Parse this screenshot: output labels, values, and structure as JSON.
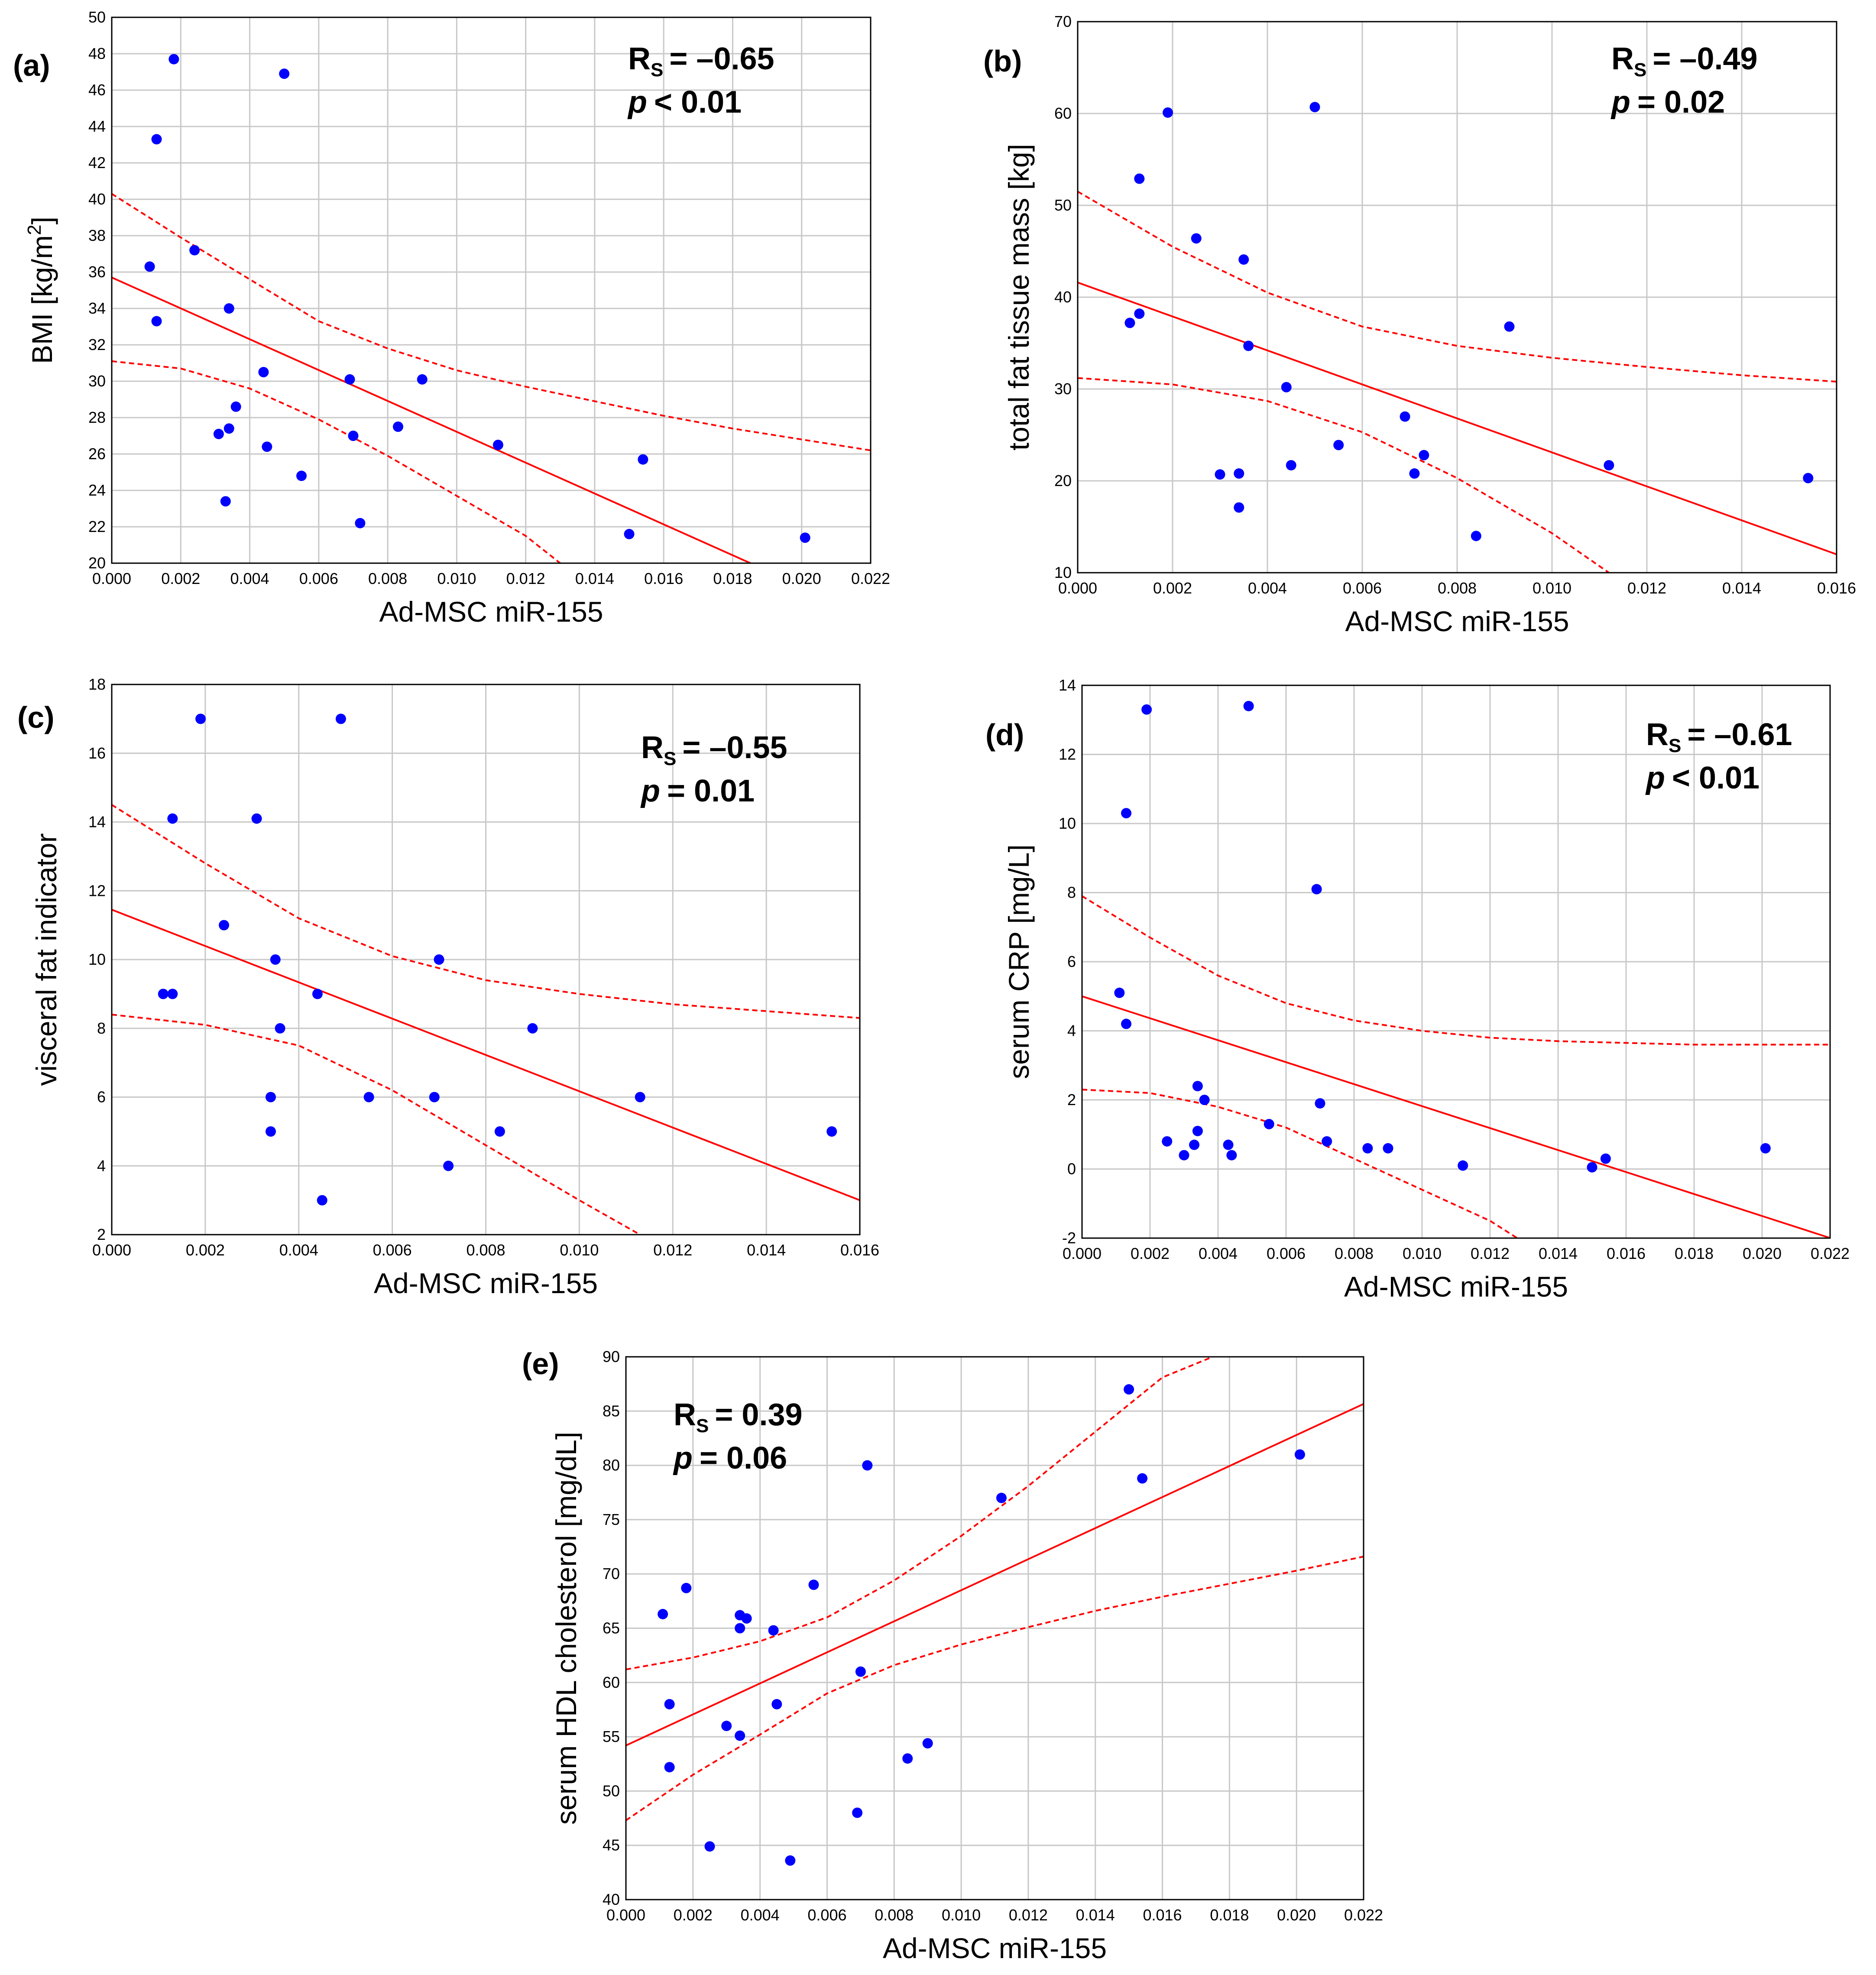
{
  "colors": {
    "points": "#0000ff",
    "fit": "#ff0000",
    "grid": "#c8c8c8"
  },
  "chart_data": [
    {
      "type": "scatter",
      "panel": "(a)",
      "xlabel": "Ad-MSC miR-155",
      "ylabel": "BMI [kg/m",
      "ylabel_sup": "2",
      "ylabel_end": "]",
      "stat": {
        "r": "= –0.65",
        "p": "< 0.01",
        "position": "top-right"
      },
      "xlim": [
        0,
        0.022
      ],
      "ylim": [
        20,
        50
      ],
      "xticks": [
        "0.000",
        "0.002",
        "0.004",
        "0.006",
        "0.008",
        "0.010",
        "0.012",
        "0.014",
        "0.016",
        "0.018",
        "0.020",
        "0.022"
      ],
      "yticks": [
        "20",
        "22",
        "24",
        "26",
        "28",
        "30",
        "32",
        "34",
        "36",
        "38",
        "40",
        "42",
        "44",
        "46",
        "48",
        "50"
      ],
      "fit": {
        "intercept": 35.7,
        "slope": -848
      },
      "ci_upper": [
        [
          0,
          40.3
        ],
        [
          0.002,
          37.9
        ],
        [
          0.004,
          35.6
        ],
        [
          0.006,
          33.3
        ],
        [
          0.008,
          31.8
        ],
        [
          0.01,
          30.6
        ],
        [
          0.012,
          29.7
        ],
        [
          0.014,
          28.9
        ],
        [
          0.016,
          28.1
        ],
        [
          0.018,
          27.4
        ],
        [
          0.02,
          26.8
        ],
        [
          0.022,
          26.2
        ]
      ],
      "ci_lower": [
        [
          0,
          31.1
        ],
        [
          0.002,
          30.7
        ],
        [
          0.004,
          29.6
        ],
        [
          0.006,
          27.9
        ],
        [
          0.008,
          25.9
        ],
        [
          0.01,
          23.7
        ],
        [
          0.012,
          21.5
        ],
        [
          0.013,
          20.0
        ]
      ],
      "points": [
        [
          0.0011,
          36.3
        ],
        [
          0.0013,
          43.3
        ],
        [
          0.0013,
          33.3
        ],
        [
          0.0018,
          47.7
        ],
        [
          0.0024,
          37.2
        ],
        [
          0.0031,
          27.1
        ],
        [
          0.0033,
          23.4
        ],
        [
          0.0034,
          27.4
        ],
        [
          0.0034,
          34
        ],
        [
          0.0036,
          28.6
        ],
        [
          0.0044,
          30.5
        ],
        [
          0.0045,
          26.4
        ],
        [
          0.005,
          46.9
        ],
        [
          0.0055,
          24.8
        ],
        [
          0.0069,
          30.1
        ],
        [
          0.007,
          27
        ],
        [
          0.0072,
          22.2
        ],
        [
          0.0083,
          27.5
        ],
        [
          0.009,
          30.1
        ],
        [
          0.0112,
          26.5
        ],
        [
          0.015,
          21.6
        ],
        [
          0.0154,
          25.7
        ],
        [
          0.0201,
          21.4
        ]
      ]
    },
    {
      "type": "scatter",
      "panel": "(b)",
      "xlabel": "Ad-MSC miR-155",
      "ylabel": "total fat tissue mass [kg]",
      "stat": {
        "r": "= –0.49",
        "p": "= 0.02",
        "position": "top-right"
      },
      "xlim": [
        0,
        0.016
      ],
      "ylim": [
        10,
        70
      ],
      "xticks": [
        "0.000",
        "0.002",
        "0.004",
        "0.006",
        "0.008",
        "0.010",
        "0.012",
        "0.014",
        "0.016"
      ],
      "yticks": [
        "10",
        "20",
        "30",
        "40",
        "50",
        "60",
        "70"
      ],
      "fit": {
        "intercept": 41.6,
        "slope": -1850
      },
      "ci_upper": [
        [
          0,
          51.5
        ],
        [
          0.002,
          45.5
        ],
        [
          0.004,
          40.5
        ],
        [
          0.006,
          36.8
        ],
        [
          0.008,
          34.7
        ],
        [
          0.01,
          33.4
        ],
        [
          0.012,
          32.4
        ],
        [
          0.014,
          31.5
        ],
        [
          0.016,
          30.8
        ]
      ],
      "ci_lower": [
        [
          0,
          31.2
        ],
        [
          0.002,
          30.5
        ],
        [
          0.004,
          28.7
        ],
        [
          0.006,
          25.3
        ],
        [
          0.008,
          20.3
        ],
        [
          0.01,
          14.3
        ],
        [
          0.0112,
          10.0
        ]
      ],
      "points": [
        [
          0.0011,
          37.2
        ],
        [
          0.0013,
          52.9
        ],
        [
          0.0013,
          38.2
        ],
        [
          0.0019,
          60.1
        ],
        [
          0.0025,
          46.4
        ],
        [
          0.003,
          20.7
        ],
        [
          0.0034,
          20.8
        ],
        [
          0.0034,
          17.1
        ],
        [
          0.0035,
          44.1
        ],
        [
          0.0036,
          34.7
        ],
        [
          0.0044,
          30.2
        ],
        [
          0.0045,
          21.7
        ],
        [
          0.005,
          60.7
        ],
        [
          0.0055,
          23.9
        ],
        [
          0.0069,
          27
        ],
        [
          0.0071,
          20.8
        ],
        [
          0.0073,
          22.8
        ],
        [
          0.0084,
          14
        ],
        [
          0.0091,
          36.8
        ],
        [
          0.0112,
          21.7
        ],
        [
          0.0154,
          20.3
        ]
      ]
    },
    {
      "type": "scatter",
      "panel": "(c)",
      "xlabel": "Ad-MSC miR-155",
      "ylabel": "visceral fat indicator",
      "stat": {
        "r": "= –0.55",
        "p": "= 0.01",
        "position": "top-right"
      },
      "xlim": [
        0,
        0.016
      ],
      "ylim": [
        2,
        18
      ],
      "xticks": [
        "0.000",
        "0.002",
        "0.004",
        "0.006",
        "0.008",
        "0.010",
        "0.012",
        "0.014",
        "0.016"
      ],
      "yticks": [
        "2",
        "4",
        "6",
        "8",
        "10",
        "12",
        "14",
        "16",
        "18"
      ],
      "fit": {
        "intercept": 11.45,
        "slope": -528
      },
      "ci_upper": [
        [
          0,
          14.5
        ],
        [
          0.002,
          12.8
        ],
        [
          0.004,
          11.2
        ],
        [
          0.006,
          10.1
        ],
        [
          0.008,
          9.4
        ],
        [
          0.01,
          9.0
        ],
        [
          0.012,
          8.7
        ],
        [
          0.014,
          8.5
        ],
        [
          0.016,
          8.3
        ]
      ],
      "ci_lower": [
        [
          0,
          8.4
        ],
        [
          0.002,
          8.1
        ],
        [
          0.004,
          7.5
        ],
        [
          0.006,
          6.2
        ],
        [
          0.008,
          4.6
        ],
        [
          0.01,
          3.0
        ],
        [
          0.0113,
          2.0
        ]
      ],
      "points": [
        [
          0.0011,
          9
        ],
        [
          0.0013,
          14.1
        ],
        [
          0.0013,
          9
        ],
        [
          0.0019,
          17
        ],
        [
          0.0024,
          11
        ],
        [
          0.0031,
          14.1
        ],
        [
          0.0034,
          6
        ],
        [
          0.0034,
          5
        ],
        [
          0.0035,
          10
        ],
        [
          0.0036,
          8
        ],
        [
          0.0044,
          9
        ],
        [
          0.0045,
          3
        ],
        [
          0.0049,
          17
        ],
        [
          0.0055,
          6
        ],
        [
          0.0069,
          6
        ],
        [
          0.007,
          10
        ],
        [
          0.0072,
          4
        ],
        [
          0.0083,
          5
        ],
        [
          0.009,
          8
        ],
        [
          0.0113,
          6
        ],
        [
          0.0154,
          5
        ]
      ]
    },
    {
      "type": "scatter",
      "panel": "(d)",
      "xlabel": "Ad-MSC miR-155",
      "ylabel": "serum CRP [mg/L]",
      "stat": {
        "r": "= –0.61",
        "p": "< 0.01",
        "position": "top-right"
      },
      "xlim": [
        0,
        0.022
      ],
      "ylim": [
        -2,
        14
      ],
      "xticks": [
        "0.000",
        "0.002",
        "0.004",
        "0.006",
        "0.008",
        "0.010",
        "0.012",
        "0.014",
        "0.016",
        "0.018",
        "0.020",
        "0.022"
      ],
      "yticks": [
        "-2",
        "0",
        "2",
        "4",
        "6",
        "8",
        "10",
        "12",
        "14"
      ],
      "fit": {
        "intercept": 5.0,
        "slope": -318
      },
      "ci_upper": [
        [
          0,
          7.9
        ],
        [
          0.002,
          6.7
        ],
        [
          0.004,
          5.6
        ],
        [
          0.006,
          4.8
        ],
        [
          0.008,
          4.3
        ],
        [
          0.01,
          4.0
        ],
        [
          0.012,
          3.8
        ],
        [
          0.014,
          3.7
        ],
        [
          0.016,
          3.65
        ],
        [
          0.018,
          3.6
        ],
        [
          0.02,
          3.6
        ],
        [
          0.022,
          3.6
        ]
      ],
      "ci_lower": [
        [
          0,
          2.3
        ],
        [
          0.002,
          2.2
        ],
        [
          0.004,
          1.8
        ],
        [
          0.006,
          1.2
        ],
        [
          0.008,
          0.3
        ],
        [
          0.01,
          -0.6
        ],
        [
          0.012,
          -1.5
        ],
        [
          0.0128,
          -2.0
        ]
      ],
      "points": [
        [
          0.0011,
          5.1
        ],
        [
          0.0013,
          10.3
        ],
        [
          0.0013,
          4.2
        ],
        [
          0.0019,
          13.3
        ],
        [
          0.0025,
          0.8
        ],
        [
          0.003,
          0.4
        ],
        [
          0.0033,
          0.7
        ],
        [
          0.0034,
          1.1
        ],
        [
          0.0034,
          2.4
        ],
        [
          0.0036,
          2
        ],
        [
          0.0043,
          0.7
        ],
        [
          0.0044,
          0.4
        ],
        [
          0.0049,
          13.4
        ],
        [
          0.0055,
          1.3
        ],
        [
          0.0069,
          8.1
        ],
        [
          0.007,
          1.9
        ],
        [
          0.0072,
          0.8
        ],
        [
          0.0084,
          0.6
        ],
        [
          0.009,
          0.6
        ],
        [
          0.0112,
          0.1
        ],
        [
          0.015,
          0.05
        ],
        [
          0.0154,
          0.3
        ],
        [
          0.0201,
          0.6
        ]
      ]
    },
    {
      "type": "scatter",
      "panel": "(e)",
      "xlabel": "Ad-MSC miR-155",
      "ylabel": "serum HDL cholesterol [mg/dL]",
      "stat": {
        "r": "= 0.39",
        "p": "= 0.06",
        "position": "top-left"
      },
      "xlim": [
        0,
        0.022
      ],
      "ylim": [
        40,
        90
      ],
      "xticks": [
        "0.000",
        "0.002",
        "0.004",
        "0.006",
        "0.008",
        "0.010",
        "0.012",
        "0.014",
        "0.016",
        "0.018",
        "0.020",
        "0.022"
      ],
      "yticks": [
        "40",
        "45",
        "50",
        "55",
        "60",
        "65",
        "70",
        "75",
        "80",
        "85",
        "90"
      ],
      "fit": {
        "intercept": 54.2,
        "slope": 1430
      },
      "ci_upper": [
        [
          0,
          61.2
        ],
        [
          0.002,
          62.3
        ],
        [
          0.004,
          63.8
        ],
        [
          0.006,
          66.0
        ],
        [
          0.008,
          69.4
        ],
        [
          0.01,
          73.5
        ],
        [
          0.012,
          78.1
        ],
        [
          0.014,
          83.1
        ],
        [
          0.016,
          88.1
        ],
        [
          0.0175,
          90.0
        ]
      ],
      "ci_lower": [
        [
          0,
          47.3
        ],
        [
          0.002,
          51.5
        ],
        [
          0.004,
          55.2
        ],
        [
          0.006,
          59.0
        ],
        [
          0.008,
          61.6
        ],
        [
          0.01,
          63.5
        ],
        [
          0.012,
          65.1
        ],
        [
          0.014,
          66.6
        ],
        [
          0.016,
          67.9
        ],
        [
          0.018,
          69.1
        ],
        [
          0.02,
          70.3
        ],
        [
          0.022,
          71.6
        ]
      ],
      "points": [
        [
          0.0011,
          66.3
        ],
        [
          0.0013,
          58
        ],
        [
          0.0013,
          52.2
        ],
        [
          0.0018,
          68.7
        ],
        [
          0.0025,
          44.9
        ],
        [
          0.003,
          56
        ],
        [
          0.0034,
          65
        ],
        [
          0.0034,
          55.1
        ],
        [
          0.0034,
          66.2
        ],
        [
          0.0036,
          65.9
        ],
        [
          0.0044,
          64.8
        ],
        [
          0.0045,
          58
        ],
        [
          0.0049,
          43.6
        ],
        [
          0.0056,
          69
        ],
        [
          0.0069,
          48
        ],
        [
          0.007,
          61
        ],
        [
          0.0072,
          80
        ],
        [
          0.0084,
          53
        ],
        [
          0.009,
          54.4
        ],
        [
          0.0112,
          77
        ],
        [
          0.015,
          87
        ],
        [
          0.0154,
          78.8
        ],
        [
          0.0201,
          81
        ]
      ]
    }
  ]
}
